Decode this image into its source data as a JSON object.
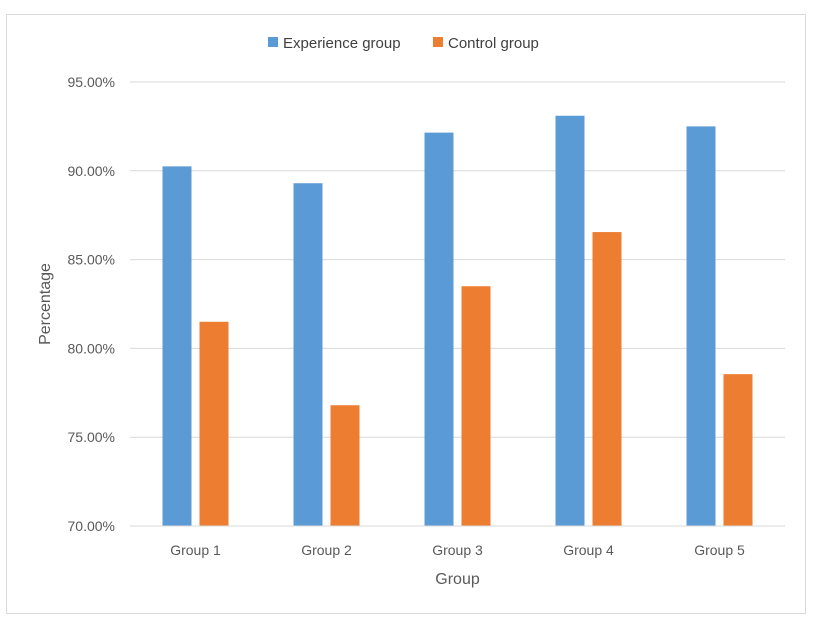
{
  "chart_data": {
    "type": "bar",
    "title": "",
    "xlabel": "Group",
    "ylabel": "Percentage",
    "categories": [
      "Group 1",
      "Group 2",
      "Group 3",
      "Group 4",
      "Group 5"
    ],
    "series": [
      {
        "name": "Experience group",
        "color": "#5b9bd5",
        "values": [
          90.25,
          89.3,
          92.15,
          93.1,
          92.5
        ]
      },
      {
        "name": "Control group",
        "color": "#ed7d31",
        "values": [
          81.5,
          76.8,
          83.5,
          86.55,
          78.55
        ]
      }
    ],
    "ylim": [
      70,
      95
    ],
    "yticks": [
      "70.00%",
      "75.00%",
      "80.00%",
      "85.00%",
      "90.00%",
      "95.00%"
    ],
    "ytick_values": [
      70,
      75,
      80,
      85,
      90,
      95
    ],
    "grid": true,
    "legend_position": "top-center"
  }
}
